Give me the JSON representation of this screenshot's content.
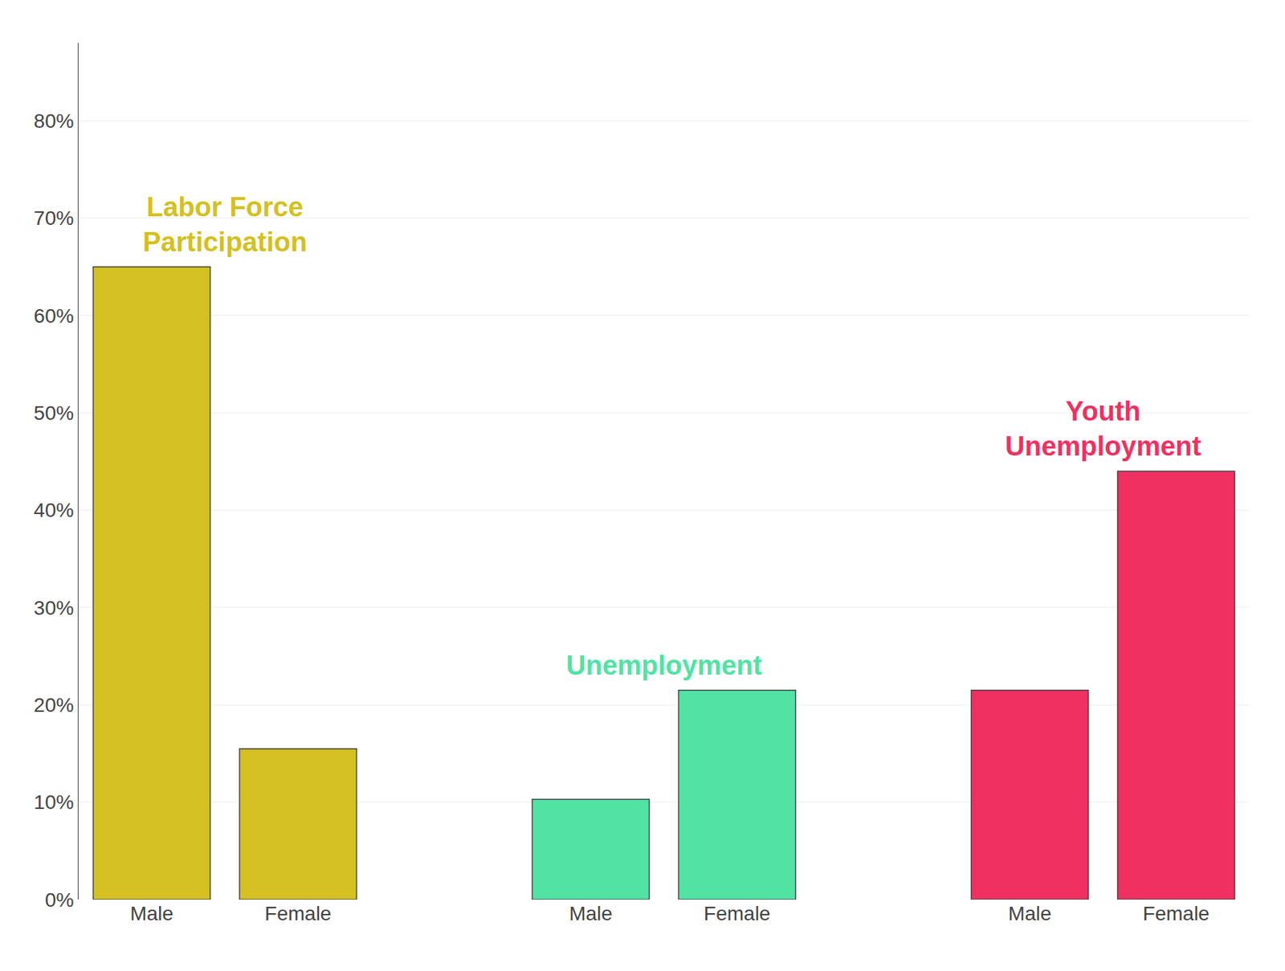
{
  "chart_data": {
    "type": "bar",
    "categories": [
      "Male",
      "Female",
      "Male",
      "Female",
      "Male",
      "Female"
    ],
    "values": [
      0.65,
      0.155,
      0.103,
      0.215,
      0.215,
      0.44
    ],
    "colors": [
      "#D4C020",
      "#D4C020",
      "#50E3A4",
      "#50E3A4",
      "#F03060",
      "#F03060"
    ],
    "annotations": [
      {
        "text": "Labor Force\nParticipation",
        "color": "#D4C020"
      },
      {
        "text": "Unemployment",
        "color": "#50E3A4"
      },
      {
        "text": "Youth\nUnemployment",
        "color": "#F03060"
      }
    ],
    "ylim": [
      0,
      0.88
    ],
    "yticks": [
      {
        "value": 0.0,
        "label": "0%"
      },
      {
        "value": 0.1,
        "label": "10%"
      },
      {
        "value": 0.2,
        "label": "20%"
      },
      {
        "value": 0.3,
        "label": "30%"
      },
      {
        "value": 0.4,
        "label": "40%"
      },
      {
        "value": 0.5,
        "label": "50%"
      },
      {
        "value": 0.6,
        "label": "60%"
      },
      {
        "value": 0.7,
        "label": "70%"
      },
      {
        "value": 0.8,
        "label": "80%"
      }
    ],
    "grid": true
  }
}
